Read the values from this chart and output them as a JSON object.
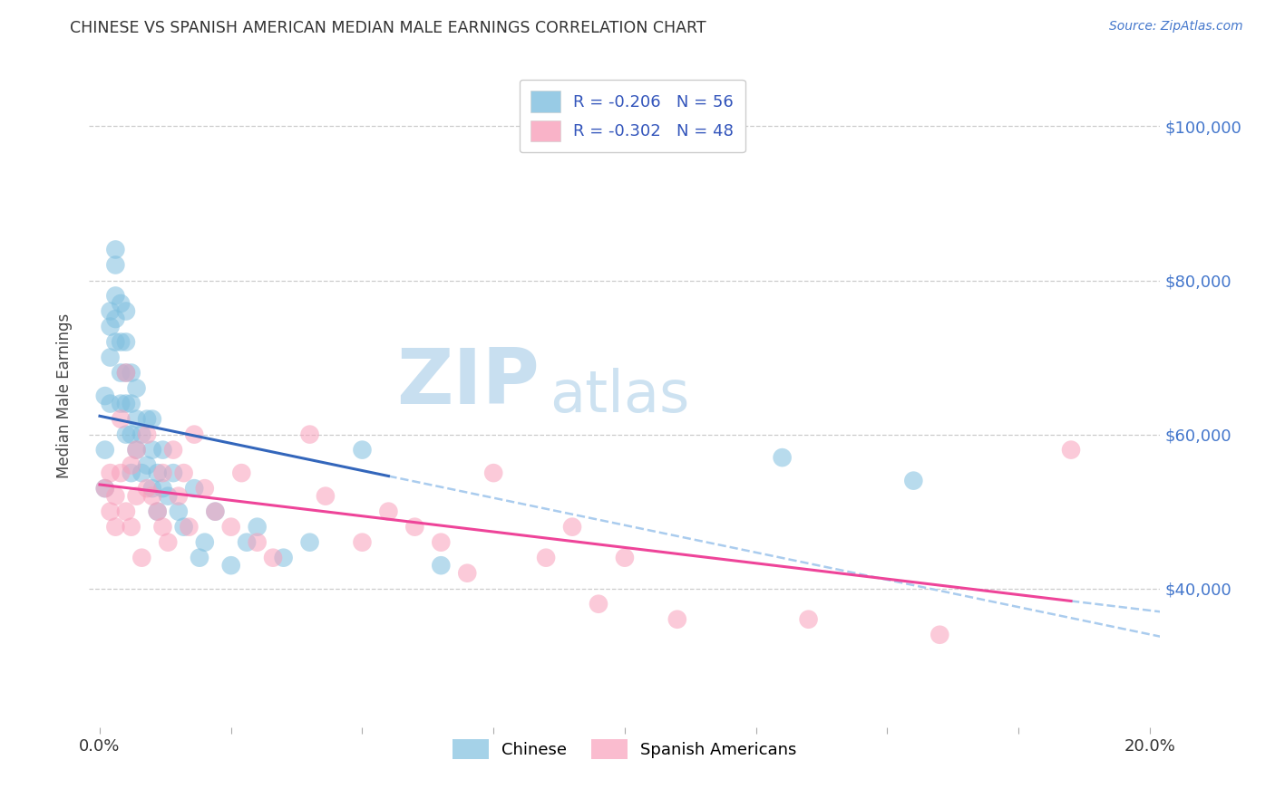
{
  "title": "CHINESE VS SPANISH AMERICAN MEDIAN MALE EARNINGS CORRELATION CHART",
  "source": "Source: ZipAtlas.com",
  "ylabel": "Median Male Earnings",
  "ytick_labels": [
    "$40,000",
    "$60,000",
    "$80,000",
    "$100,000"
  ],
  "ytick_values": [
    40000,
    60000,
    80000,
    100000
  ],
  "ylim": [
    22000,
    108000
  ],
  "xlim": [
    -0.002,
    0.202
  ],
  "chinese_R": "-0.206",
  "chinese_N": "56",
  "spanish_R": "-0.302",
  "spanish_N": "48",
  "chinese_color": "#7fbfdf",
  "spanish_color": "#f8a0bb",
  "chinese_line_color": "#3366bb",
  "spanish_line_color": "#ee4499",
  "dashed_line_color": "#aaccee",
  "watermark_zip": "ZIP",
  "watermark_atlas": "atlas",
  "chinese_line_x_end": 0.055,
  "spanish_line_x_end": 0.2,
  "xtick_major": [
    0.0,
    0.2
  ],
  "xtick_minor": [
    0.025,
    0.05,
    0.075,
    0.1,
    0.125,
    0.15,
    0.175
  ],
  "chinese_x": [
    0.001,
    0.001,
    0.001,
    0.002,
    0.002,
    0.002,
    0.002,
    0.003,
    0.003,
    0.003,
    0.003,
    0.003,
    0.004,
    0.004,
    0.004,
    0.004,
    0.005,
    0.005,
    0.005,
    0.005,
    0.005,
    0.006,
    0.006,
    0.006,
    0.006,
    0.007,
    0.007,
    0.007,
    0.008,
    0.008,
    0.009,
    0.009,
    0.01,
    0.01,
    0.01,
    0.011,
    0.011,
    0.012,
    0.012,
    0.013,
    0.014,
    0.015,
    0.016,
    0.018,
    0.019,
    0.02,
    0.022,
    0.025,
    0.028,
    0.03,
    0.035,
    0.04,
    0.05,
    0.065,
    0.13,
    0.155
  ],
  "chinese_y": [
    53000,
    58000,
    65000,
    64000,
    70000,
    74000,
    76000,
    72000,
    75000,
    78000,
    82000,
    84000,
    64000,
    68000,
    72000,
    77000,
    60000,
    64000,
    68000,
    72000,
    76000,
    55000,
    60000,
    64000,
    68000,
    58000,
    62000,
    66000,
    55000,
    60000,
    56000,
    62000,
    53000,
    58000,
    62000,
    50000,
    55000,
    53000,
    58000,
    52000,
    55000,
    50000,
    48000,
    53000,
    44000,
    46000,
    50000,
    43000,
    46000,
    48000,
    44000,
    46000,
    58000,
    43000,
    57000,
    54000
  ],
  "spanish_x": [
    0.001,
    0.002,
    0.002,
    0.003,
    0.003,
    0.004,
    0.004,
    0.005,
    0.005,
    0.006,
    0.006,
    0.007,
    0.007,
    0.008,
    0.009,
    0.009,
    0.01,
    0.011,
    0.012,
    0.012,
    0.013,
    0.014,
    0.015,
    0.016,
    0.017,
    0.018,
    0.02,
    0.022,
    0.025,
    0.027,
    0.03,
    0.033,
    0.04,
    0.043,
    0.05,
    0.055,
    0.06,
    0.065,
    0.07,
    0.075,
    0.085,
    0.09,
    0.095,
    0.1,
    0.11,
    0.135,
    0.16,
    0.185
  ],
  "spanish_y": [
    53000,
    50000,
    55000,
    48000,
    52000,
    55000,
    62000,
    50000,
    68000,
    48000,
    56000,
    52000,
    58000,
    44000,
    53000,
    60000,
    52000,
    50000,
    48000,
    55000,
    46000,
    58000,
    52000,
    55000,
    48000,
    60000,
    53000,
    50000,
    48000,
    55000,
    46000,
    44000,
    60000,
    52000,
    46000,
    50000,
    48000,
    46000,
    42000,
    55000,
    44000,
    48000,
    38000,
    44000,
    36000,
    36000,
    34000,
    58000
  ]
}
